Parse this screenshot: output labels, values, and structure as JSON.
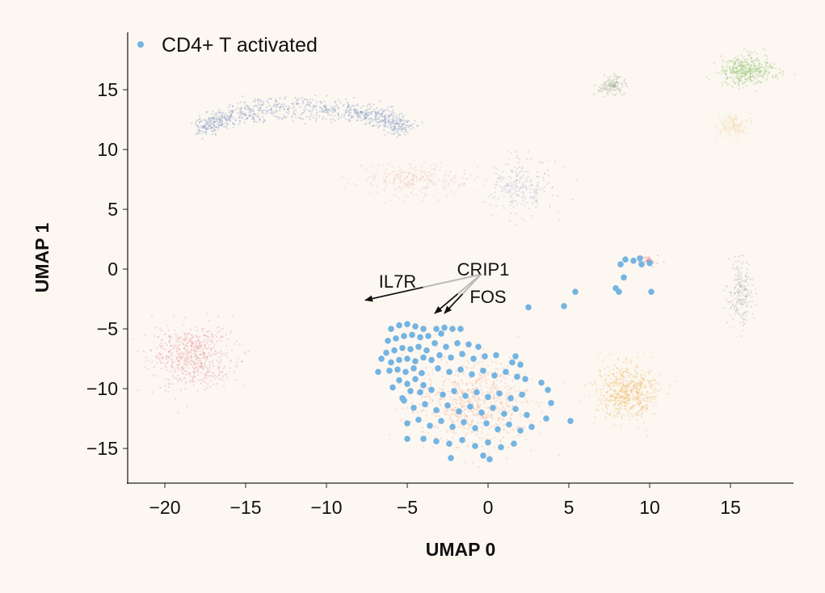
{
  "chart_data": {
    "type": "scatter",
    "title": "",
    "xlabel": "UMAP 0",
    "ylabel": "UMAP 1",
    "xlim": [
      -22.3,
      18.9
    ],
    "ylim": [
      -17.9,
      19.8
    ],
    "xticks": [
      -20,
      -15,
      -10,
      -5,
      0,
      5,
      10,
      15
    ],
    "yticks": [
      -15,
      -10,
      -5,
      0,
      5,
      10,
      15
    ],
    "xtick_labels": [
      "−20",
      "−15",
      "−10",
      "−5",
      "0",
      "5",
      "10",
      "15"
    ],
    "ytick_labels": [
      "−15",
      "−10",
      "−5",
      "0",
      "5",
      "10",
      "15"
    ],
    "grid": false,
    "legend": {
      "position": "top-left",
      "entries": [
        "CD4+ T activated"
      ]
    },
    "highlight_color": "#74b4e2",
    "series": [
      {
        "name": "CD4+ T activated",
        "color": "#74b4e2",
        "points": [
          [
            -6,
            -5
          ],
          [
            -5.5,
            -4.7
          ],
          [
            -5,
            -4.6
          ],
          [
            -4.5,
            -4.8
          ],
          [
            -4,
            -5
          ],
          [
            -6.2,
            -6
          ],
          [
            -5.7,
            -5.8
          ],
          [
            -5.2,
            -5.6
          ],
          [
            -4.7,
            -5.5
          ],
          [
            -4.2,
            -5.7
          ],
          [
            -3.7,
            -5.6
          ],
          [
            -6.3,
            -7
          ],
          [
            -5.8,
            -6.8
          ],
          [
            -5.3,
            -6.6
          ],
          [
            -4.8,
            -6.7
          ],
          [
            -4.3,
            -6.5
          ],
          [
            -3.8,
            -6.8
          ],
          [
            -6,
            -7.8
          ],
          [
            -5.5,
            -7.6
          ],
          [
            -5,
            -7.5
          ],
          [
            -4.5,
            -7.7
          ],
          [
            -4,
            -7.4
          ],
          [
            -3.5,
            -7.6
          ],
          [
            -6.1,
            -8.5
          ],
          [
            -5.6,
            -8.4
          ],
          [
            -5.1,
            -8.6
          ],
          [
            -4.6,
            -8.3
          ],
          [
            -4.1,
            -8.7
          ],
          [
            -5.5,
            -9.3
          ],
          [
            -5,
            -9.6
          ],
          [
            -4.5,
            -9.2
          ],
          [
            -4,
            -9.7
          ],
          [
            -6.6,
            -7.5
          ],
          [
            -5.9,
            -9.9
          ],
          [
            -3.2,
            -5
          ],
          [
            -2.7,
            -4.9
          ],
          [
            -2.2,
            -5
          ],
          [
            -1.7,
            -5
          ],
          [
            -2.9,
            -5.4
          ],
          [
            -3.3,
            -6.2
          ],
          [
            -2.6,
            -6.5
          ],
          [
            -1.9,
            -6.2
          ],
          [
            -1.2,
            -6.3
          ],
          [
            -0.6,
            -6.5
          ],
          [
            -3,
            -7.2
          ],
          [
            -2.3,
            -7.4
          ],
          [
            -1.6,
            -7.1
          ],
          [
            -0.9,
            -7.5
          ],
          [
            -0.2,
            -7.3
          ],
          [
            0.5,
            -7.2
          ],
          [
            1.7,
            -7.3
          ],
          [
            1.5,
            -7.8
          ],
          [
            2,
            -8
          ],
          [
            -3.1,
            -8.3
          ],
          [
            -2.4,
            -8.6
          ],
          [
            -1.7,
            -8.4
          ],
          [
            -1,
            -8.8
          ],
          [
            -0.3,
            -8.5
          ],
          [
            0.4,
            -8.9
          ],
          [
            1.1,
            -8.6
          ],
          [
            1.8,
            -9
          ],
          [
            2.3,
            -9.2
          ],
          [
            3.3,
            -9.5
          ],
          [
            -4.2,
            -10.3
          ],
          [
            -3.5,
            -10.1
          ],
          [
            -2.8,
            -10.5
          ],
          [
            -2.1,
            -10.2
          ],
          [
            -1.4,
            -10.6
          ],
          [
            -0.7,
            -10.3
          ],
          [
            0,
            -10.7
          ],
          [
            0.7,
            -10.4
          ],
          [
            1.4,
            -10.8
          ],
          [
            2.1,
            -10.5
          ],
          [
            3.7,
            -10.1
          ],
          [
            -5.2,
            -11
          ],
          [
            -4.6,
            -11.6
          ],
          [
            -3.9,
            -11.3
          ],
          [
            -3.2,
            -11.8
          ],
          [
            -2.5,
            -11.4
          ],
          [
            -1.8,
            -11.9
          ],
          [
            -1.1,
            -11.5
          ],
          [
            -0.4,
            -12
          ],
          [
            0.3,
            -11.6
          ],
          [
            1,
            -12.1
          ],
          [
            1.7,
            -11.7
          ],
          [
            2.4,
            -12.2
          ],
          [
            3.9,
            -11.2
          ],
          [
            3.6,
            -12.5
          ],
          [
            -5,
            -12.9
          ],
          [
            -4.3,
            -12.6
          ],
          [
            -3.6,
            -13.1
          ],
          [
            -2.9,
            -12.7
          ],
          [
            -2.2,
            -13.2
          ],
          [
            -1.5,
            -12.8
          ],
          [
            -0.8,
            -13.3
          ],
          [
            -0.1,
            -12.9
          ],
          [
            0.6,
            -13.4
          ],
          [
            1.3,
            -13
          ],
          [
            2,
            -13.5
          ],
          [
            2.7,
            -13.2
          ],
          [
            -4,
            -14.2
          ],
          [
            -3.2,
            -14.4
          ],
          [
            -2.4,
            -14.6
          ],
          [
            -1.6,
            -14.3
          ],
          [
            -0.8,
            -14.8
          ],
          [
            0,
            -14.5
          ],
          [
            0.8,
            -14.9
          ],
          [
            1.6,
            -14.6
          ],
          [
            -2.3,
            -15.8
          ],
          [
            -0.3,
            -15.6
          ],
          [
            0.1,
            -15.9
          ],
          [
            -5,
            -14.2
          ],
          [
            -6.8,
            -8.6
          ],
          [
            -5.3,
            -10.8
          ],
          [
            -4.8,
            -10.2
          ],
          [
            8.5,
            0.8
          ],
          [
            9,
            0.7
          ],
          [
            9.4,
            0.9
          ],
          [
            9.5,
            0.4
          ],
          [
            8.2,
            0.4
          ],
          [
            10,
            0.5
          ],
          [
            8.4,
            -0.7
          ],
          [
            7.9,
            -1.6
          ],
          [
            8.1,
            -1.9
          ],
          [
            10.1,
            -1.9
          ],
          [
            5.4,
            -1.9
          ],
          [
            4.7,
            -3.1
          ],
          [
            2.5,
            -3.2
          ],
          [
            5.1,
            -12.7
          ]
        ]
      }
    ],
    "background_clusters": [
      {
        "center": [
          -11.5,
          12.8
        ],
        "spread": [
          3.6,
          1.3
        ],
        "count": 900,
        "color": "#7d98bf",
        "shape": "arc"
      },
      {
        "center": [
          16,
          16.6
        ],
        "spread": [
          1.4,
          0.9
        ],
        "count": 450,
        "color": "#9ac978"
      },
      {
        "center": [
          7.6,
          15.3
        ],
        "spread": [
          0.8,
          0.6
        ],
        "count": 120,
        "color": "#9aa890"
      },
      {
        "center": [
          15.2,
          12
        ],
        "spread": [
          0.9,
          0.8
        ],
        "count": 150,
        "color": "#eed6a6"
      },
      {
        "center": [
          -4.5,
          7.5
        ],
        "spread": [
          3,
          1.2
        ],
        "count": 250,
        "color": "#f0b6b6"
      },
      {
        "center": [
          2,
          7
        ],
        "spread": [
          1.8,
          2
        ],
        "count": 220,
        "color": "#a5b2d8"
      },
      {
        "center": [
          -18.3,
          -7.3
        ],
        "spread": [
          2,
          2.1
        ],
        "count": 600,
        "color": "#e69ca6"
      },
      {
        "center": [
          -1,
          -11.2
        ],
        "spread": [
          3,
          3
        ],
        "count": 700,
        "color": "#f4ad8c"
      },
      {
        "center": [
          8.6,
          -10.4
        ],
        "spread": [
          1.6,
          2
        ],
        "count": 600,
        "color": "#efbd6a"
      },
      {
        "center": [
          15.6,
          -2
        ],
        "spread": [
          0.6,
          2.3
        ],
        "count": 200,
        "color": "#a8b2b4"
      },
      {
        "center": [
          10,
          0.7
        ],
        "spread": [
          0.5,
          0.3
        ],
        "count": 40,
        "color": "#e07c7c"
      }
    ],
    "annotations": [
      {
        "text": "IL7R",
        "label_at": [
          -5.6,
          -1.0
        ],
        "arrow_from": [
          -0.45,
          -0.45
        ],
        "arrow_to": [
          -7.6,
          -2.6
        ]
      },
      {
        "text": "CRIP1",
        "label_at": [
          -0.3,
          0.0
        ],
        "arrow_from": [
          -0.45,
          -0.45
        ],
        "arrow_to": [
          -3.3,
          -3.7
        ]
      },
      {
        "text": "FOS",
        "label_at": [
          0.0,
          -2.3
        ],
        "arrow_from": [
          -0.45,
          -0.45
        ],
        "arrow_to": [
          -2.7,
          -3.7
        ]
      }
    ]
  }
}
